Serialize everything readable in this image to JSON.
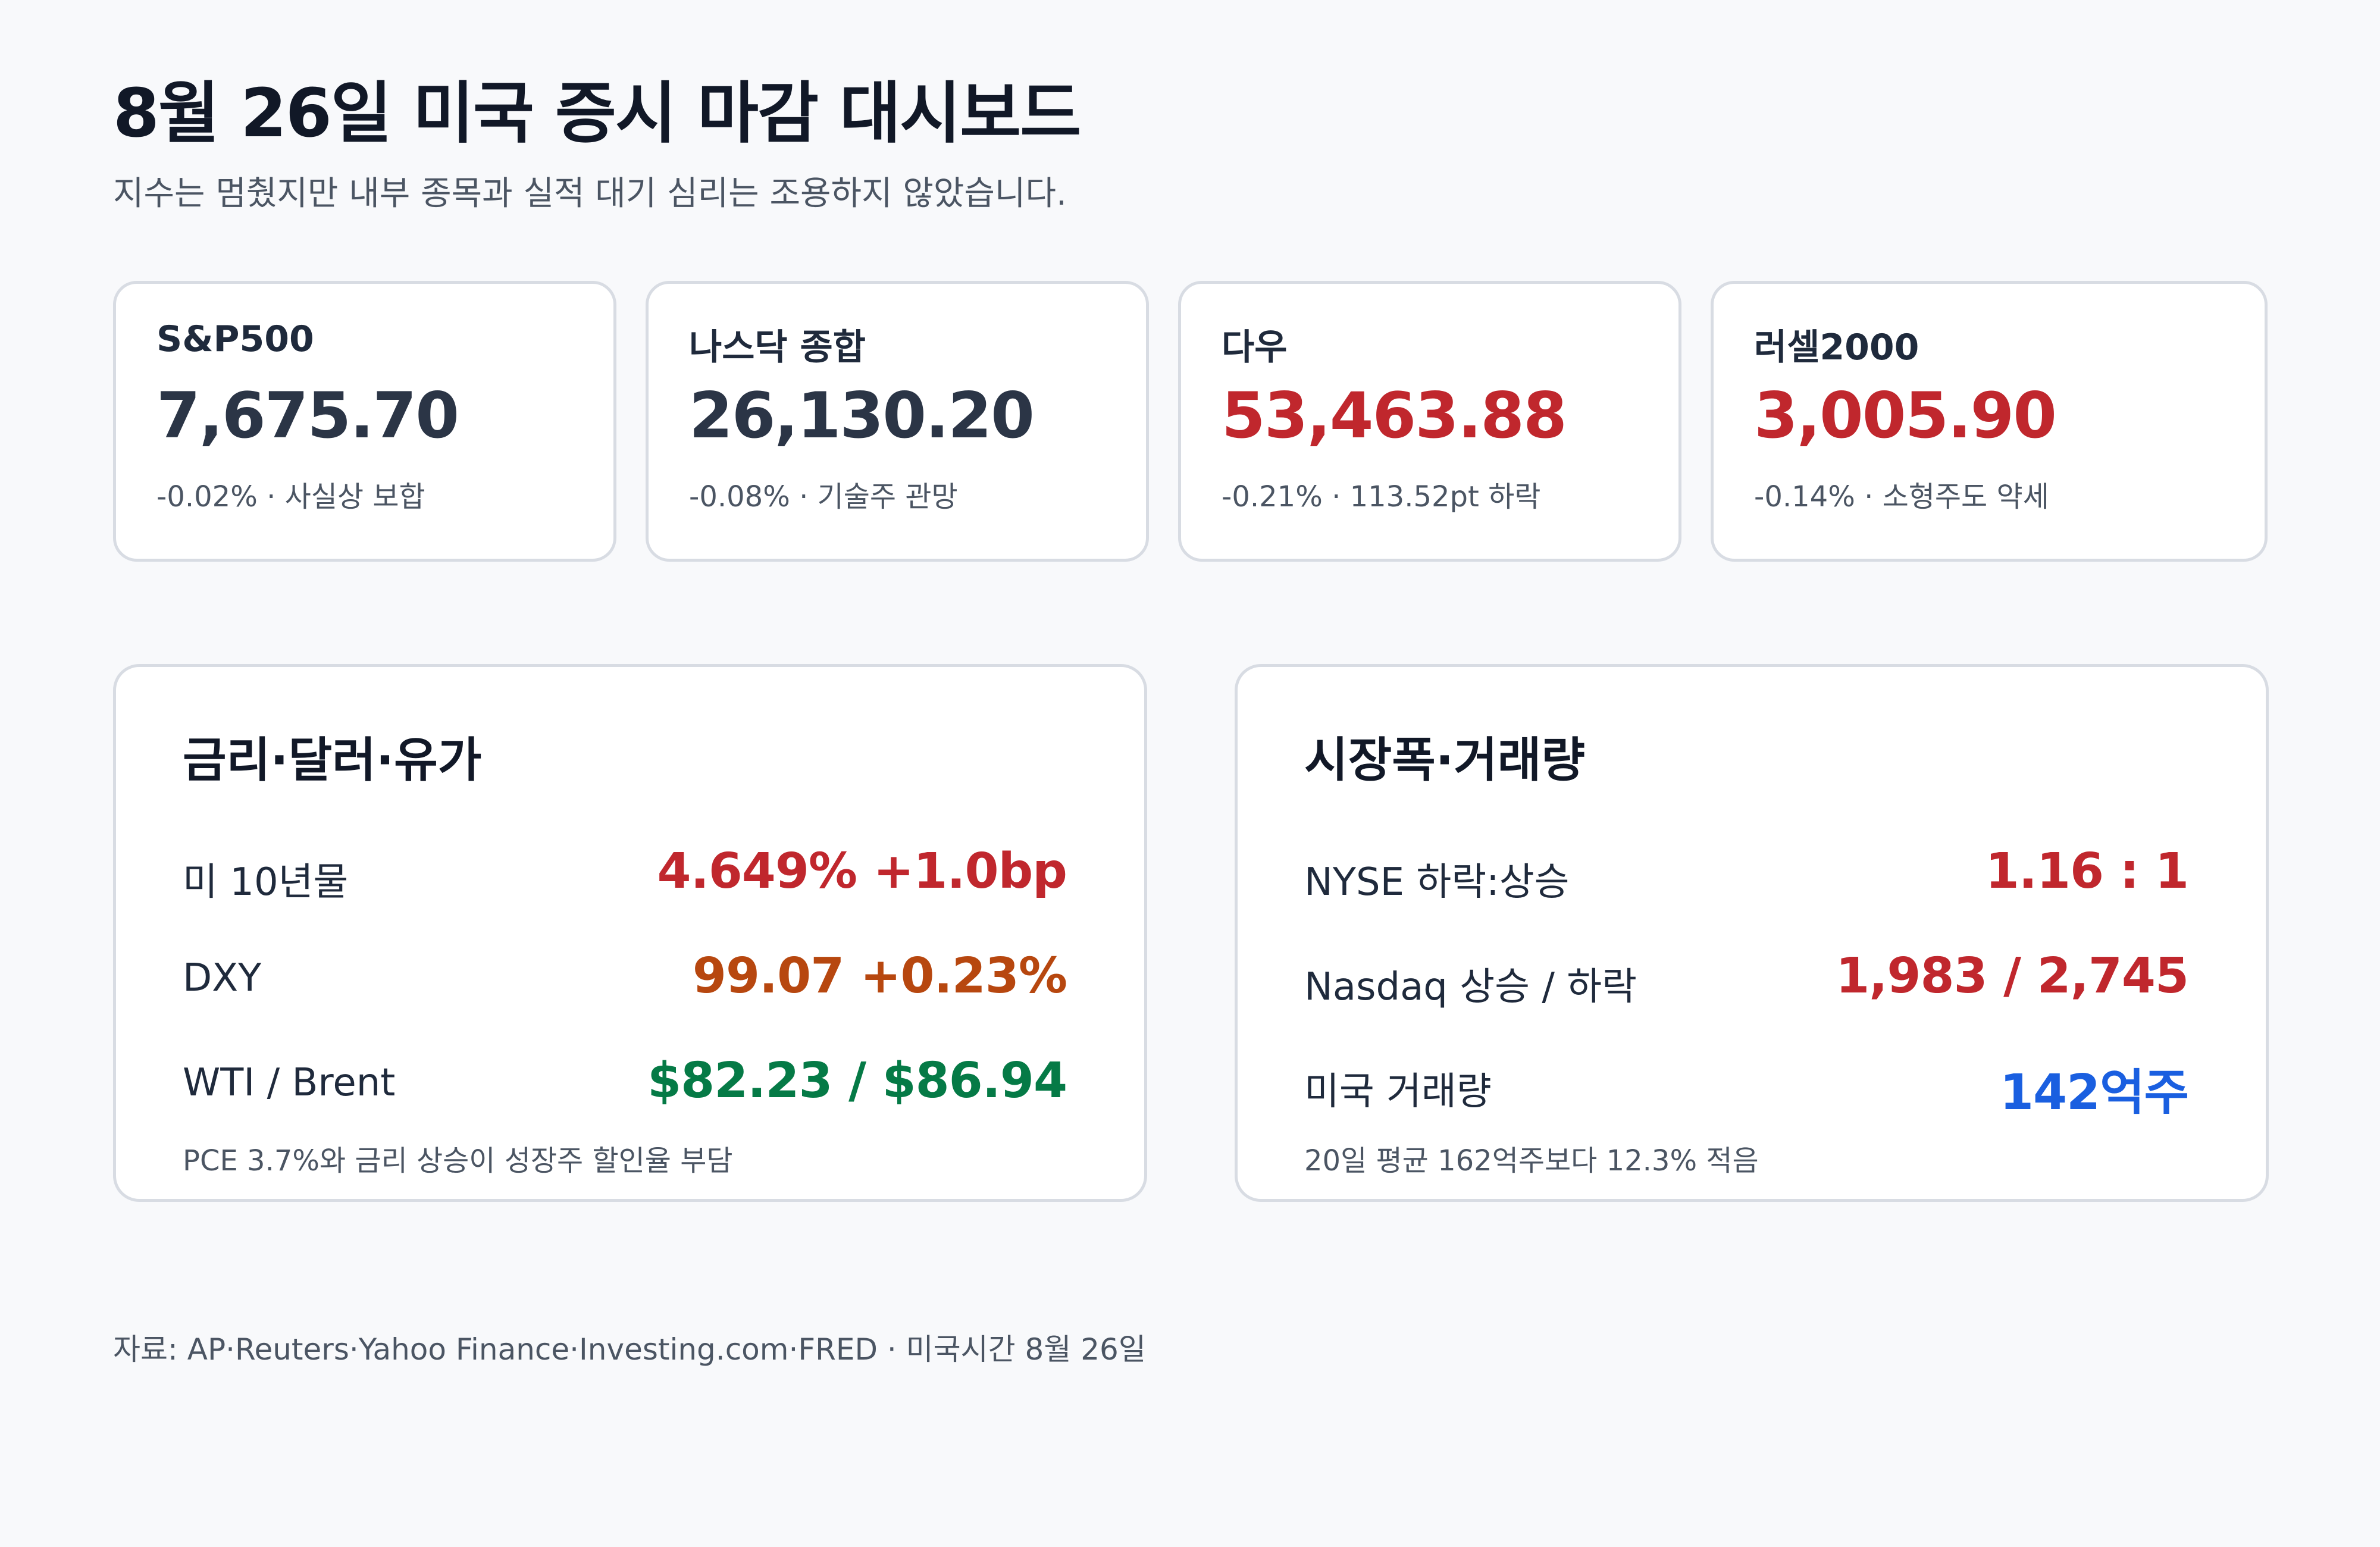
{
  "header": {
    "title": "8월 26일 미국 증시 마감 대시보드",
    "subtitle": "지수는 멈췄지만 내부 종목과 실적 대기 심리는 조용하지 않았습니다."
  },
  "indices": [
    {
      "name": "S&P500",
      "value": "7,675.70",
      "note": "-0.02% · 사실상 보합",
      "color": "#2b3546"
    },
    {
      "name": "나스닥 종합",
      "value": "26,130.20",
      "note": "-0.08% · 기술주 관망",
      "color": "#2b3546"
    },
    {
      "name": "다우",
      "value": "53,463.88",
      "note": "-0.21% · 113.52pt 하락",
      "color": "#c0272d"
    },
    {
      "name": "러셀2000",
      "value": "3,005.90",
      "note": "-0.14% · 소형주도 약세",
      "color": "#c0272d"
    }
  ],
  "rates_panel": {
    "title": "금리·달러·유가",
    "rows": [
      {
        "label": "미 10년물",
        "value": "4.649% +1.0bp",
        "color": "#c0272d"
      },
      {
        "label": "DXY",
        "value": "99.07 +0.23%",
        "color": "#b7470f"
      },
      {
        "label": "WTI / Brent",
        "value": "$82.23 / $86.94",
        "color": "#057a46"
      }
    ],
    "note": "PCE 3.7%와 금리 상승이 성장주 할인율 부담"
  },
  "breadth_panel": {
    "title": "시장폭·거래량",
    "rows": [
      {
        "label": "NYSE 하락:상승",
        "value": "1.16 : 1",
        "color": "#c0272d"
      },
      {
        "label": "Nasdaq 상승 / 하락",
        "value": "1,983 / 2,745",
        "color": "#c0272d"
      },
      {
        "label": "미국 거래량",
        "value": "142억주",
        "color": "#1a5fe0"
      }
    ],
    "note": "20일 평균 162억주보다 12.3% 적음"
  },
  "footer": {
    "source": "자료: AP·Reuters·Yahoo Finance·Investing.com·FRED · 미국시간 8월 26일"
  }
}
